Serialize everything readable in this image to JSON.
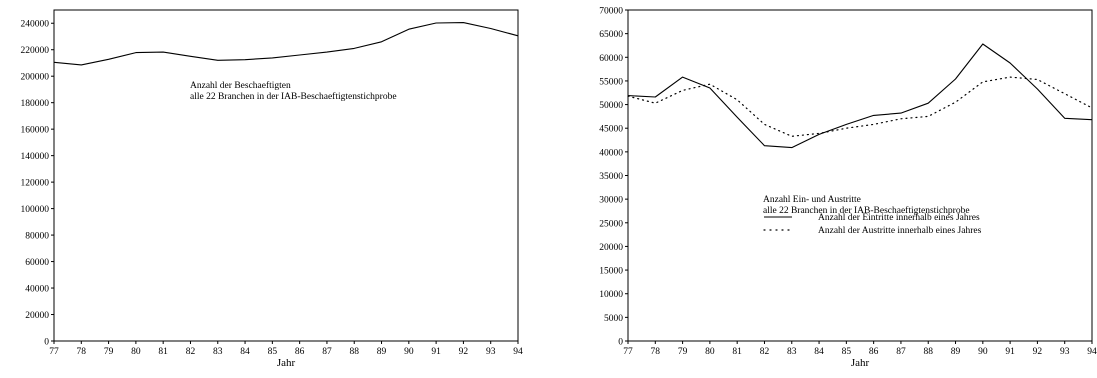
{
  "chart_data": [
    {
      "type": "line",
      "x": [
        77,
        78,
        79,
        80,
        81,
        82,
        83,
        84,
        85,
        86,
        87,
        88,
        89,
        90,
        91,
        92,
        93,
        94
      ],
      "xticks": [
        "77",
        "78",
        "79",
        "80",
        "81",
        "82",
        "83",
        "84",
        "85",
        "86",
        "87",
        "88",
        "89",
        "90",
        "91",
        "92",
        "93",
        "94"
      ],
      "xlabel": "Jahr",
      "ylabel": "",
      "ylim": [
        0,
        250000
      ],
      "yticks": [
        0,
        20000,
        40000,
        60000,
        80000,
        100000,
        120000,
        140000,
        160000,
        180000,
        200000,
        220000,
        240000
      ],
      "xlim": [
        77,
        94
      ],
      "grid": false,
      "annotation": [
        "Anzahl der Beschaeftigten",
        "alle 22 Branchen in der IAB-Beschaeftigtenstichprobe"
      ],
      "series": [
        {
          "style": "solid",
          "values": [
            210500,
            208500,
            212800,
            217800,
            218200,
            215000,
            212000,
            212500,
            213800,
            216000,
            218200,
            221000,
            226000,
            235500,
            240200,
            240500,
            236000,
            230500
          ]
        }
      ]
    },
    {
      "type": "line",
      "x": [
        77,
        78,
        79,
        80,
        81,
        82,
        83,
        84,
        85,
        86,
        87,
        88,
        89,
        90,
        91,
        92,
        93,
        94
      ],
      "xticks": [
        "77",
        "78",
        "79",
        "80",
        "81",
        "82",
        "83",
        "84",
        "85",
        "86",
        "87",
        "88",
        "89",
        "90",
        "91",
        "92",
        "93",
        "94"
      ],
      "xlabel": "Jahr",
      "ylabel": "",
      "ylim": [
        0,
        70000
      ],
      "yticks": [
        0,
        5000,
        10000,
        15000,
        20000,
        25000,
        30000,
        35000,
        40000,
        45000,
        50000,
        55000,
        60000,
        65000,
        70000
      ],
      "xlim": [
        77,
        94
      ],
      "grid": false,
      "annotation": [
        "Anzahl Ein- und Austritte",
        "alle 22 Branchen in der IAB-Beschaeftigtenstichprobe"
      ],
      "legend_position": "center-left",
      "series": [
        {
          "name": "Anzahl der Eintritte innerhalb eines Jahres",
          "style": "solid",
          "values": [
            51900,
            51600,
            55800,
            53500,
            47300,
            41300,
            40900,
            43700,
            45800,
            47700,
            48200,
            50300,
            55400,
            62800,
            58800,
            53300,
            47100,
            46800
          ]
        },
        {
          "name": "Anzahl der Austritte innerhalb eines Jahres",
          "style": "dotted",
          "values": [
            51800,
            50300,
            53000,
            54300,
            51000,
            45800,
            43300,
            43900,
            45000,
            45800,
            47000,
            47500,
            50500,
            54800,
            55800,
            55300,
            52300,
            49300
          ]
        }
      ]
    }
  ]
}
